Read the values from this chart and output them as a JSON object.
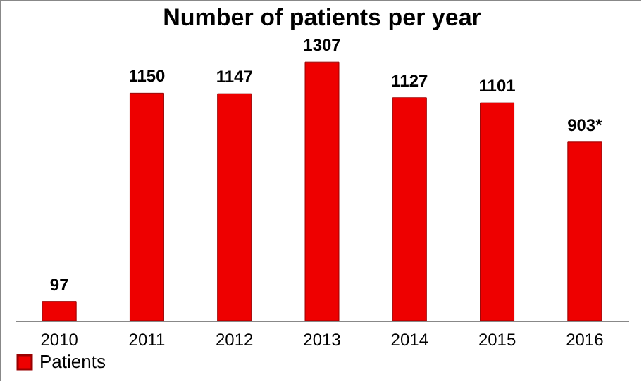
{
  "chart_data": {
    "type": "bar",
    "title": "Number of patients per year",
    "categories": [
      "2010",
      "2011",
      "2012",
      "2013",
      "2014",
      "2015",
      "2016"
    ],
    "series": [
      {
        "name": "Patients",
        "color": "#ee0000",
        "values": [
          97,
          1150,
          1147,
          1307,
          1127,
          1101,
          903
        ],
        "value_labels": [
          "97",
          "1150",
          "1147",
          "1307",
          "1127",
          "1101",
          "903*"
        ]
      }
    ],
    "legend": "bottom left"
  }
}
